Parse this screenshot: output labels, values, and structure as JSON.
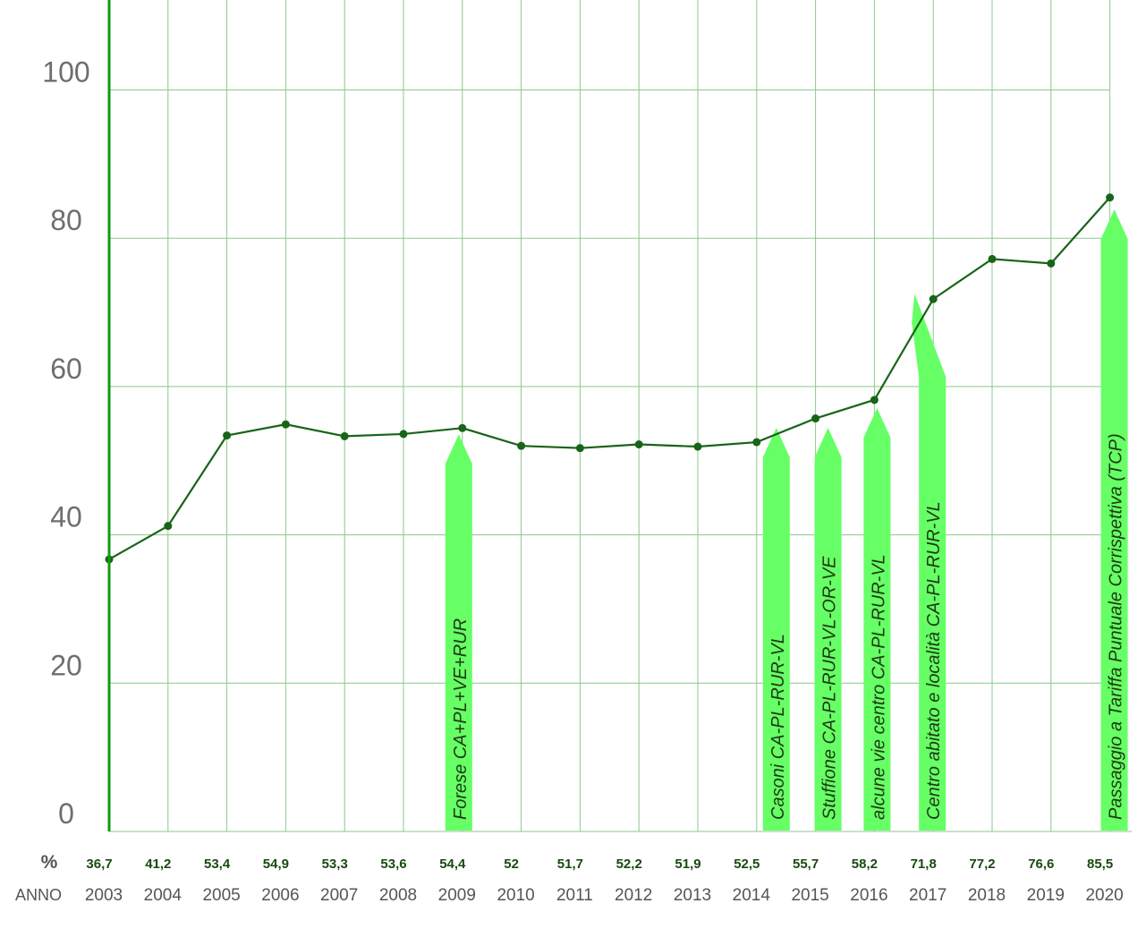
{
  "chart_data": {
    "type": "line",
    "title": "",
    "xlabel": "ANNO",
    "ylabel": "%",
    "ylim": [
      0,
      110
    ],
    "yticks": [
      "0",
      "20",
      "40",
      "60",
      "80",
      "100"
    ],
    "grid": true,
    "x": [
      "2003",
      "2004",
      "2005",
      "2006",
      "2007",
      "2008",
      "2009",
      "2010",
      "2011",
      "2012",
      "2013",
      "2014",
      "2015",
      "2016",
      "2017",
      "2018",
      "2019",
      "2020"
    ],
    "values": [
      36.7,
      41.2,
      53.4,
      54.9,
      53.3,
      53.6,
      54.4,
      52,
      51.7,
      52.2,
      51.9,
      52.5,
      55.7,
      58.2,
      71.8,
      77.2,
      76.6,
      85.5
    ],
    "value_labels": [
      "36,7",
      "41,2",
      "53,4",
      "54,9",
      "53,3",
      "53,6",
      "54,4",
      "52",
      "51,7",
      "52,2",
      "51,9",
      "52,5",
      "55,7",
      "58,2",
      "71,8",
      "77,2",
      "76,6",
      "85,5"
    ],
    "annotations": [
      {
        "text": "Forese CA+PL+VE+RUR",
        "x": "2009"
      },
      {
        "text": "Casoni CA-PL-RUR-VL",
        "x": "2015"
      },
      {
        "text": "Stuffione CA-PL-RUR-VL-OR-VE",
        "x": "2015"
      },
      {
        "text": "alcune vie centro CA-PL-RUR-VL",
        "x": "2016"
      },
      {
        "text": "Centro abitato e località CA-PL-RUR-VL",
        "x": "2017"
      },
      {
        "text": "Passaggio a  Tariffa Puntuale Corrispettiva (TCP)",
        "x": "2020"
      }
    ],
    "colors": {
      "line": "#186418",
      "axis": "#129a12",
      "grid": "#8cc88c",
      "arrow": "#66ff66"
    }
  }
}
